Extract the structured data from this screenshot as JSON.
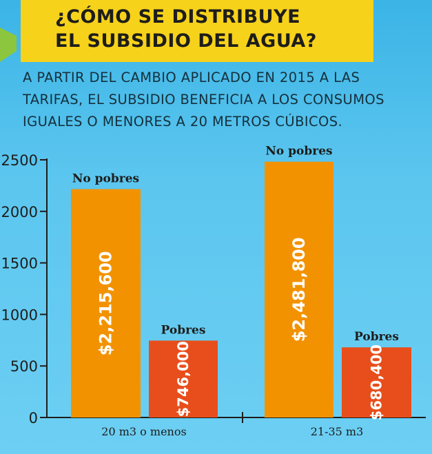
{
  "header": {
    "title_lines": [
      "¿CÓMO SE DISTRIBUYE",
      "EL SUBSIDIO DEL AGUA?"
    ],
    "subtitle_lines": [
      "A PARTIR DEL CAMBIO APLICADO EN 2015 A LAS",
      "TARIFAS, EL SUBSIDIO BENEFICIA A LOS CONSUMOS",
      "IGUALES O MENORES A 20 METROS CÚBICOS."
    ]
  },
  "colors": {
    "no_pobres": "#f39200",
    "pobres": "#e84e1b",
    "title_bg": "#f7d21a",
    "axis": "#1d1d1b"
  },
  "chart_data": {
    "type": "bar",
    "categories": [
      "20 m3 o menos",
      "21-35 m3"
    ],
    "series": [
      {
        "name": "No pobres",
        "values": [
          2215.6,
          2481.8
        ],
        "value_labels": [
          "$2,215,600",
          "$2,481,800"
        ]
      },
      {
        "name": "Pobres",
        "values": [
          746.0,
          680.4
        ],
        "value_labels": [
          "$746,000",
          "$680,400"
        ]
      }
    ],
    "ylim": [
      0,
      2500
    ],
    "yticks": [
      0,
      500,
      1000,
      1500,
      2000,
      2500
    ],
    "grid": false
  }
}
